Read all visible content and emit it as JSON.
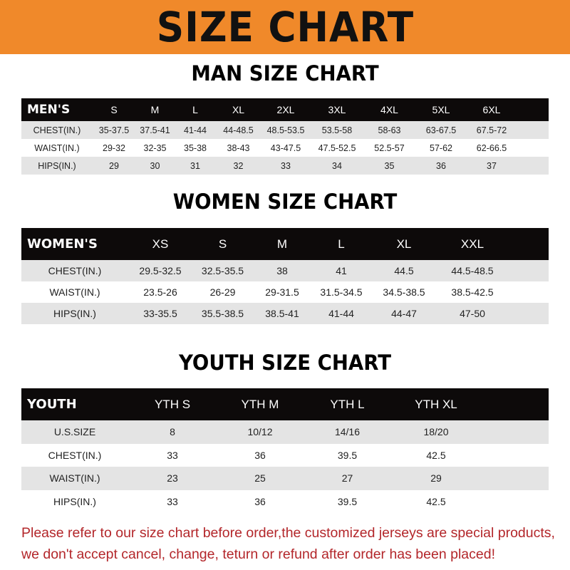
{
  "banner": {
    "title": "SIZE CHART",
    "color": "#f0892a"
  },
  "men": {
    "title": "MAN SIZE CHART",
    "header": [
      "MEN'S",
      "S",
      "M",
      "L",
      "XL",
      "2XL",
      "3XL",
      "4XL",
      "5XL",
      "6XL"
    ],
    "rows": [
      [
        "CHEST(IN.)",
        "35-37.5",
        "37.5-41",
        "41-44",
        "44-48.5",
        "48.5-53.5",
        "53.5-58",
        "58-63",
        "63-67.5",
        "67.5-72"
      ],
      [
        "WAIST(IN.)",
        "29-32",
        "32-35",
        "35-38",
        "38-43",
        "43-47.5",
        "47.5-52.5",
        "52.5-57",
        "57-62",
        "62-66.5"
      ],
      [
        "HIPS(IN.)",
        "29",
        "30",
        "31",
        "32",
        "33",
        "34",
        "35",
        "36",
        "37"
      ]
    ]
  },
  "women": {
    "title": "WOMEN SIZE CHART",
    "header": [
      "WOMEN'S",
      "XS",
      "S",
      "M",
      "L",
      "XL",
      "XXL"
    ],
    "rows": [
      [
        "CHEST(IN.)",
        "29.5-32.5",
        "32.5-35.5",
        "38",
        "41",
        "44.5",
        "44.5-48.5"
      ],
      [
        "WAIST(IN.)",
        "23.5-26",
        "26-29",
        "29-31.5",
        "31.5-34.5",
        "34.5-38.5",
        "38.5-42.5"
      ],
      [
        "HIPS(IN.)",
        "33-35.5",
        "35.5-38.5",
        "38.5-41",
        "41-44",
        "44-47",
        "47-50"
      ]
    ]
  },
  "youth": {
    "title": "YOUTH SIZE CHART",
    "header": [
      "YOUTH",
      "YTH S",
      "YTH M",
      "YTH L",
      "YTH XL"
    ],
    "rows": [
      [
        "U.S.SIZE",
        "8",
        "10/12",
        "14/16",
        "18/20"
      ],
      [
        "CHEST(IN.)",
        "33",
        "36",
        "39.5",
        "42.5"
      ],
      [
        "WAIST(IN.)",
        "23",
        "25",
        "27",
        "29"
      ],
      [
        "HIPS(IN.)",
        "33",
        "36",
        "39.5",
        "42.5"
      ]
    ]
  },
  "notice": {
    "line1": "Please refer to our size chart before order,the customized jerseys are special products,",
    "line2": "we don't accept cancel, change, teturn or refund after order has been placed!",
    "color": "#b3262a"
  }
}
